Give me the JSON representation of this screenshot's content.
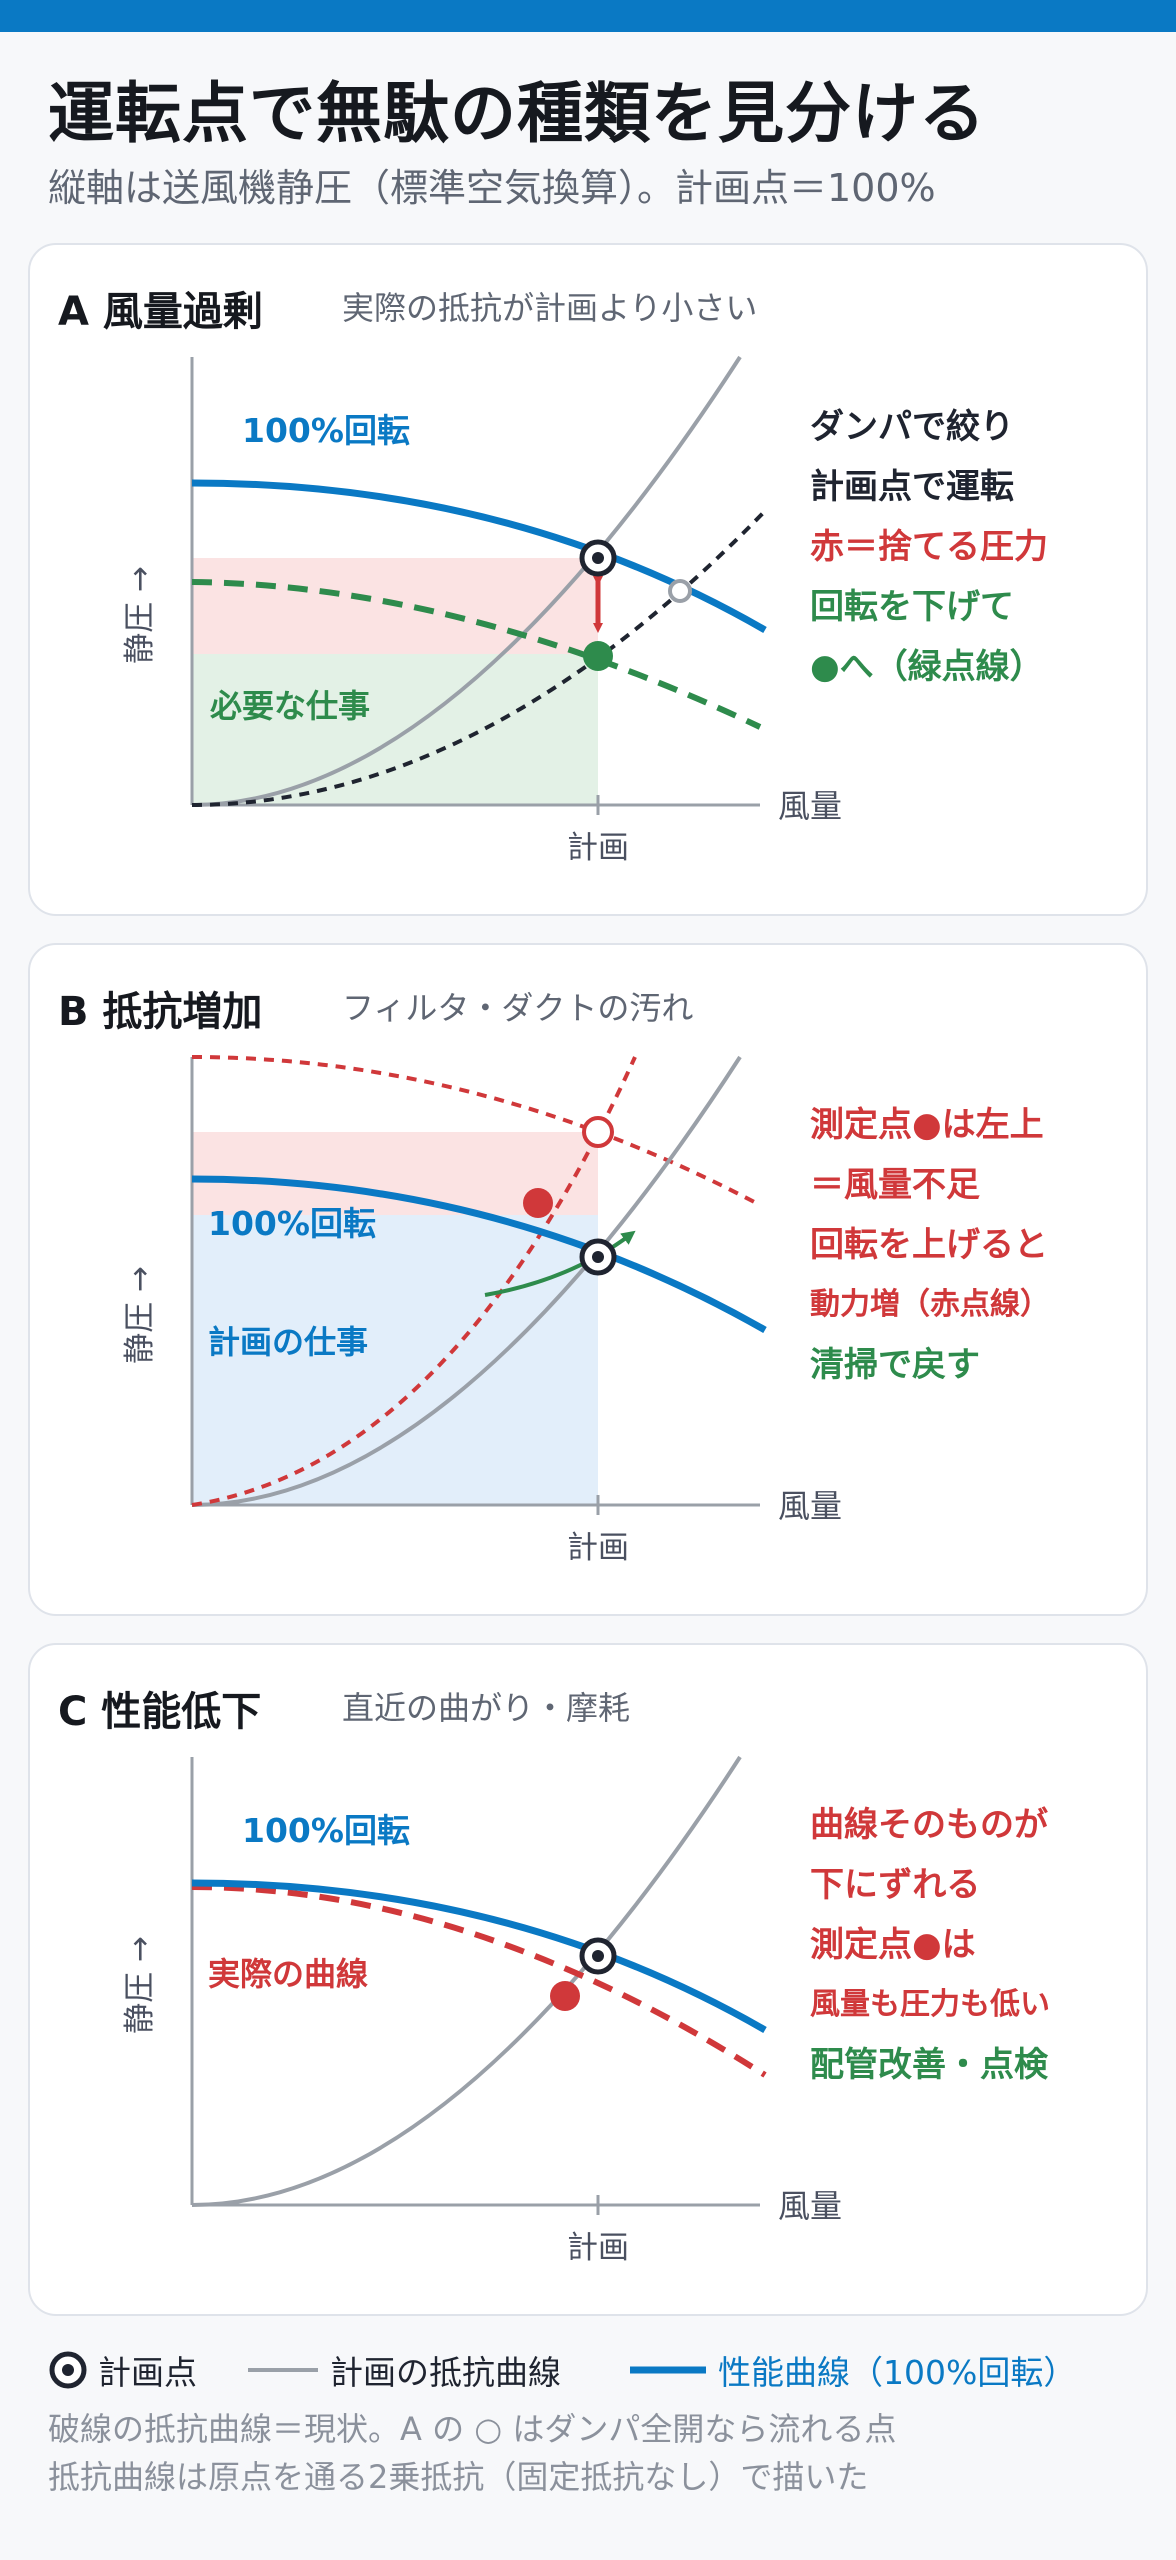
{
  "title": "運転点で無駄の種類を見分ける",
  "subtitle": "縦軸は送風機静圧（標準空気換算）。計画点＝100%",
  "axis": {
    "y_label": "静圧 →",
    "x_label": "風量",
    "x_tick": "計画"
  },
  "panels": {
    "a": {
      "title": "A 風量過剰",
      "note": "実際の抵抗が計画より小さい",
      "curve_label": "100%回転",
      "region_label": "必要な仕事",
      "annotations": [
        "ダンパで絞り",
        "計画点で運転",
        "赤＝捨てる圧力",
        "回転を下げて",
        "●へ（緑点線）"
      ]
    },
    "b": {
      "title": "B 抵抗増加",
      "note": "フィルタ・ダクトの汚れ",
      "curve_label": "100%回転",
      "region_label": "計画の仕事",
      "annotations": [
        "測定点●は左上",
        "＝風量不足",
        "回転を上げると",
        "動力増（赤点線）",
        "清掃で戻す"
      ]
    },
    "c": {
      "title": "C 性能低下",
      "note": "直近の曲がり・摩耗",
      "curve_label": "100%回転",
      "actual_label": "実際の曲線",
      "annotations": [
        "曲線そのものが",
        "下にずれる",
        "測定点●は",
        "風量も圧力も低い",
        "配管改善・点検"
      ]
    }
  },
  "legend": {
    "plan_point": "計画点",
    "resistance": "計画の抵抗曲線",
    "performance": "性能曲線（100%回転）"
  },
  "footnotes": [
    "破線の抵抗曲線＝現状。A の ○ はダンパ全開なら流れる点",
    "抵抗曲線は原点を通る2乗抵抗（固定抵抗なし）で描いた"
  ],
  "colors": {
    "blue": "#0a79c4",
    "red": "#d0383a",
    "green": "#2e8b4c",
    "gray": "#9aa0a8",
    "pink_fill": "#fbe3e3",
    "green_fill": "#e3f1e6",
    "blue_fill": "#e2eefa"
  }
}
